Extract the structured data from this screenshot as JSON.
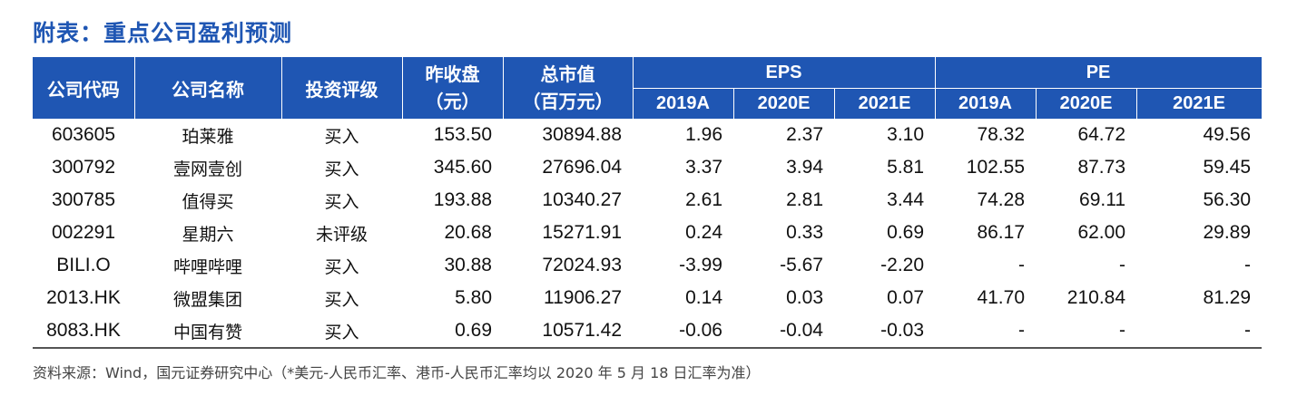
{
  "title": "附表：重点公司盈利预测",
  "headers": {
    "code": "公司代码",
    "name": "公司名称",
    "rating": "投资评级",
    "close_line1": "昨收盘",
    "close_line2": "（元）",
    "mcap_line1": "总市值",
    "mcap_line2": "（百万元）",
    "eps": "EPS",
    "pe": "PE",
    "years": [
      "2019A",
      "2020E",
      "2021E",
      "2019A",
      "2020E",
      "2021E"
    ]
  },
  "rows": [
    {
      "code": "603605",
      "name": "珀莱雅",
      "rating": "买入",
      "close": "153.50",
      "mcap": "30894.88",
      "eps2019": "1.96",
      "eps2020": "2.37",
      "eps2021": "3.10",
      "pe2019": "78.32",
      "pe2020": "64.72",
      "pe2021": "49.56"
    },
    {
      "code": "300792",
      "name": "壹网壹创",
      "rating": "买入",
      "close": "345.60",
      "mcap": "27696.04",
      "eps2019": "3.37",
      "eps2020": "3.94",
      "eps2021": "5.81",
      "pe2019": "102.55",
      "pe2020": "87.73",
      "pe2021": "59.45"
    },
    {
      "code": "300785",
      "name": "值得买",
      "rating": "买入",
      "close": "193.88",
      "mcap": "10340.27",
      "eps2019": "2.61",
      "eps2020": "2.81",
      "eps2021": "3.44",
      "pe2019": "74.28",
      "pe2020": "69.11",
      "pe2021": "56.30"
    },
    {
      "code": "002291",
      "name": "星期六",
      "rating": "未评级",
      "close": "20.68",
      "mcap": "15271.91",
      "eps2019": "0.24",
      "eps2020": "0.33",
      "eps2021": "0.69",
      "pe2019": "86.17",
      "pe2020": "62.00",
      "pe2021": "29.89"
    },
    {
      "code": "BILI.O",
      "name": "哔哩哔哩",
      "rating": "买入",
      "close": "30.88",
      "mcap": "72024.93",
      "eps2019": "-3.99",
      "eps2020": "-5.67",
      "eps2021": "-2.20",
      "pe2019": "-",
      "pe2020": "-",
      "pe2021": "-"
    },
    {
      "code": "2013.HK",
      "name": "微盟集团",
      "rating": "买入",
      "close": "5.80",
      "mcap": "11906.27",
      "eps2019": "0.14",
      "eps2020": "0.03",
      "eps2021": "0.07",
      "pe2019": "41.70",
      "pe2020": "210.84",
      "pe2021": "81.29"
    },
    {
      "code": "8083.HK",
      "name": "中国有赞",
      "rating": "买入",
      "close": "0.69",
      "mcap": "10571.42",
      "eps2019": "-0.06",
      "eps2020": "-0.04",
      "eps2021": "-0.03",
      "pe2019": "-",
      "pe2020": "-",
      "pe2021": "-"
    }
  ],
  "source": "资料来源：Wind，国元证券研究中心（*美元-人民币汇率、港币-人民币汇率均以 2020 年 5 月 18 日汇率为准）",
  "colors": {
    "header_bg": "#1f56b3",
    "title": "#1f56b3"
  }
}
